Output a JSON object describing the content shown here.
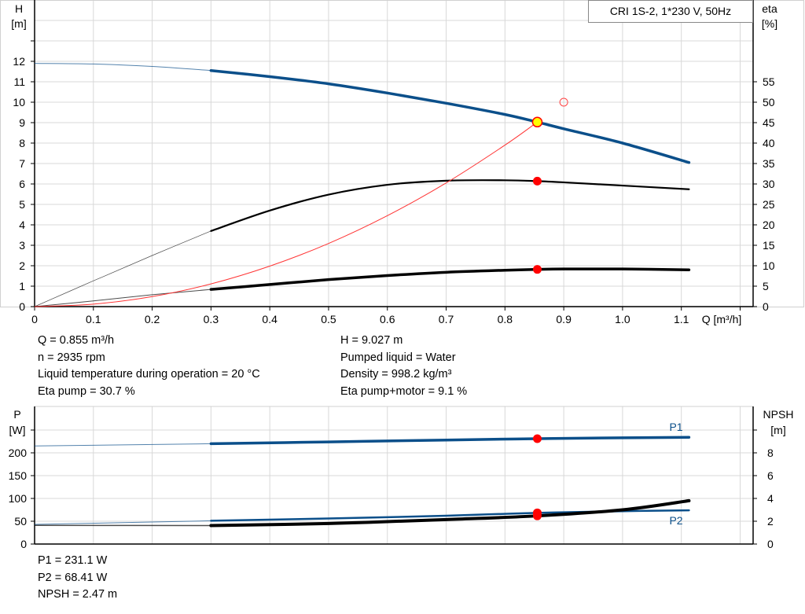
{
  "chart_data": [
    {
      "type": "line",
      "legend_box": "CRI 1S-2, 1*230 V, 50Hz",
      "xlabel": "Q [m³/h]",
      "ylabel_left": [
        "H",
        "[m]"
      ],
      "ylabel_right": [
        "eta",
        "[%]"
      ],
      "xlim": [
        0,
        1.22
      ],
      "ylim_left": [
        0,
        15
      ],
      "ylim_right": [
        0,
        75
      ],
      "x_ticks": [
        "0",
        "0.1",
        "0.2",
        "0.3",
        "0.4",
        "0.5",
        "0.6",
        "0.7",
        "0.8",
        "0.9",
        "1.0",
        "1.1"
      ],
      "y_ticks_left": [
        0,
        1,
        2,
        3,
        4,
        5,
        6,
        7,
        8,
        9,
        10,
        11,
        12
      ],
      "y_ticks_right": [
        0,
        5,
        10,
        15,
        20,
        25,
        30,
        35,
        40,
        45,
        50,
        55
      ],
      "grid": true,
      "series": [
        {
          "key": "H",
          "axis": "left",
          "color": "#0b4f8a",
          "x": [
            0,
            0.1,
            0.2,
            0.3,
            0.4,
            0.5,
            0.6,
            0.7,
            0.8,
            0.855,
            0.9,
            1.0,
            1.113
          ],
          "y": [
            11.9,
            11.87,
            11.75,
            11.55,
            11.25,
            10.9,
            10.45,
            9.95,
            9.4,
            9.027,
            8.7,
            8.0,
            7.05
          ]
        },
        {
          "key": "eta_pump",
          "axis": "right",
          "color": "#000000",
          "x": [
            0,
            0.1,
            0.2,
            0.3,
            0.4,
            0.5,
            0.6,
            0.7,
            0.8,
            0.855,
            0.9,
            1.0,
            1.113
          ],
          "y": [
            0,
            6.3,
            12.5,
            18.5,
            23.5,
            27.4,
            29.8,
            30.8,
            30.9,
            30.7,
            30.4,
            29.6,
            28.7
          ]
        },
        {
          "key": "eta_pump_motor",
          "axis": "right",
          "color": "#000000",
          "x": [
            0,
            0.1,
            0.2,
            0.3,
            0.4,
            0.5,
            0.6,
            0.7,
            0.8,
            0.855,
            0.9,
            1.0,
            1.113
          ],
          "y": [
            0,
            1.4,
            2.9,
            4.2,
            5.4,
            6.6,
            7.6,
            8.4,
            8.9,
            9.1,
            9.2,
            9.2,
            9.0
          ]
        },
        {
          "key": "system_curve",
          "axis": "left",
          "color": "#ff3333",
          "x": [
            0,
            0.1,
            0.2,
            0.3,
            0.4,
            0.5,
            0.6,
            0.7,
            0.8,
            0.855
          ],
          "y": [
            0,
            0.12,
            0.49,
            1.11,
            1.98,
            3.09,
            4.45,
            6.05,
            7.9,
            9.027
          ]
        }
      ],
      "duty_point": {
        "x": 0.855,
        "H": 9.027,
        "eta_pump": 30.7,
        "eta_pump_motor": 9.1
      },
      "requested_point": {
        "x": 0.9,
        "H": 10
      }
    },
    {
      "type": "line",
      "ylabel_left": [
        "P",
        "[W]"
      ],
      "ylabel_right": [
        "NPSH",
        "[m]"
      ],
      "xlim": [
        0,
        1.22
      ],
      "ylim_left": [
        0,
        300
      ],
      "ylim_right": [
        0,
        12
      ],
      "y_ticks_left": [
        "0",
        "50",
        "100",
        "150",
        "200",
        ""
      ],
      "y_ticks_right": [
        "0",
        "2",
        "4",
        "6",
        "8",
        ""
      ],
      "grid": true,
      "series": [
        {
          "key": "P1",
          "name": "P1",
          "axis": "left",
          "color": "#0b4f8a",
          "x": [
            0,
            0.3,
            0.5,
            0.7,
            0.855,
            1.0,
            1.113
          ],
          "y": [
            215,
            220,
            224,
            228,
            231.1,
            233,
            234
          ]
        },
        {
          "key": "P2",
          "name": "P2",
          "axis": "left",
          "color": "#0b4f8a",
          "x": [
            0,
            0.3,
            0.5,
            0.7,
            0.855,
            1.0,
            1.113
          ],
          "y": [
            43,
            51,
            56,
            62,
            68.41,
            72,
            74
          ]
        },
        {
          "key": "NPSH",
          "axis": "right",
          "color": "#000000",
          "x": [
            0,
            0.3,
            0.5,
            0.7,
            0.855,
            1.0,
            1.113
          ],
          "y": [
            1.64,
            1.62,
            1.8,
            2.15,
            2.47,
            3.0,
            3.8
          ]
        }
      ],
      "duty_point": {
        "x": 0.855,
        "P1": 231.1,
        "P2": 68.41,
        "NPSH": 2.47
      }
    }
  ],
  "info_top_left": [
    "Q = 0.855 m³/h",
    "n = 2935 rpm",
    "Liquid temperature during operation = 20 °C",
    "Eta pump = 30.7 %"
  ],
  "info_top_right": [
    "H = 9.027 m",
    "Pumped liquid = Water",
    "Density = 998.2 kg/m³",
    "Eta pump+motor = 9.1 %"
  ],
  "info_bottom": [
    "P1 = 231.1 W",
    "P2 = 68.41 W",
    "NPSH = 2.47 m"
  ]
}
